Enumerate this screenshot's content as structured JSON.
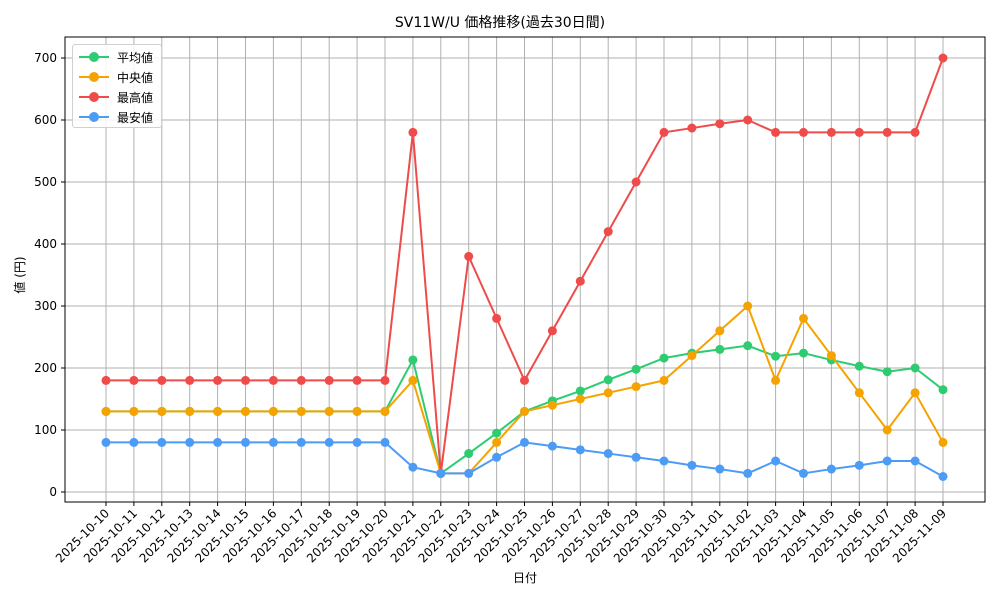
{
  "chart_data": {
    "type": "line",
    "title": "SV11W/U 価格推移(過去30日間)",
    "xlabel": "日付",
    "ylabel": "値 (円)",
    "ylim": [
      0,
      700
    ],
    "yticks": [
      0,
      100,
      200,
      300,
      400,
      500,
      600,
      700
    ],
    "grid": true,
    "legend_position": "upper left",
    "categories": [
      "2025-10-10",
      "2025-10-11",
      "2025-10-12",
      "2025-10-13",
      "2025-10-14",
      "2025-10-15",
      "2025-10-16",
      "2025-10-17",
      "2025-10-18",
      "2025-10-19",
      "2025-10-20",
      "2025-10-21",
      "2025-10-22",
      "2025-10-23",
      "2025-10-24",
      "2025-10-25",
      "2025-10-26",
      "2025-10-27",
      "2025-10-28",
      "2025-10-29",
      "2025-10-30",
      "2025-10-31",
      "2025-11-01",
      "2025-11-02",
      "2025-11-03",
      "2025-11-04",
      "2025-11-05",
      "2025-11-06",
      "2025-11-07",
      "2025-11-08",
      "2025-11-09"
    ],
    "series": [
      {
        "name": "平均値",
        "color": "#2ecc71",
        "values": [
          130,
          130,
          130,
          130,
          130,
          130,
          130,
          130,
          130,
          130,
          130,
          213,
          30,
          62,
          95,
          130,
          147,
          163,
          181,
          198,
          216,
          224,
          230,
          236,
          219,
          224,
          213,
          203,
          194,
          200,
          165
        ]
      },
      {
        "name": "中央値",
        "color": "#f5a300",
        "values": [
          130,
          130,
          130,
          130,
          130,
          130,
          130,
          130,
          130,
          130,
          130,
          180,
          30,
          30,
          80,
          130,
          140,
          150,
          160,
          170,
          180,
          220,
          260,
          300,
          180,
          280,
          220,
          160,
          100,
          160,
          80
        ]
      },
      {
        "name": "最高値",
        "color": "#f04b4b",
        "values": [
          180,
          180,
          180,
          180,
          180,
          180,
          180,
          180,
          180,
          180,
          180,
          580,
          30,
          380,
          280,
          180,
          260,
          340,
          420,
          500,
          580,
          587,
          594,
          600,
          580,
          580,
          580,
          580,
          580,
          580,
          700
        ]
      },
      {
        "name": "最安値",
        "color": "#4c9bf5",
        "values": [
          80,
          80,
          80,
          80,
          80,
          80,
          80,
          80,
          80,
          80,
          80,
          40,
          30,
          30,
          56,
          80,
          74,
          68,
          62,
          56,
          50,
          43,
          37,
          30,
          50,
          30,
          37,
          43,
          50,
          50,
          25
        ]
      }
    ]
  }
}
